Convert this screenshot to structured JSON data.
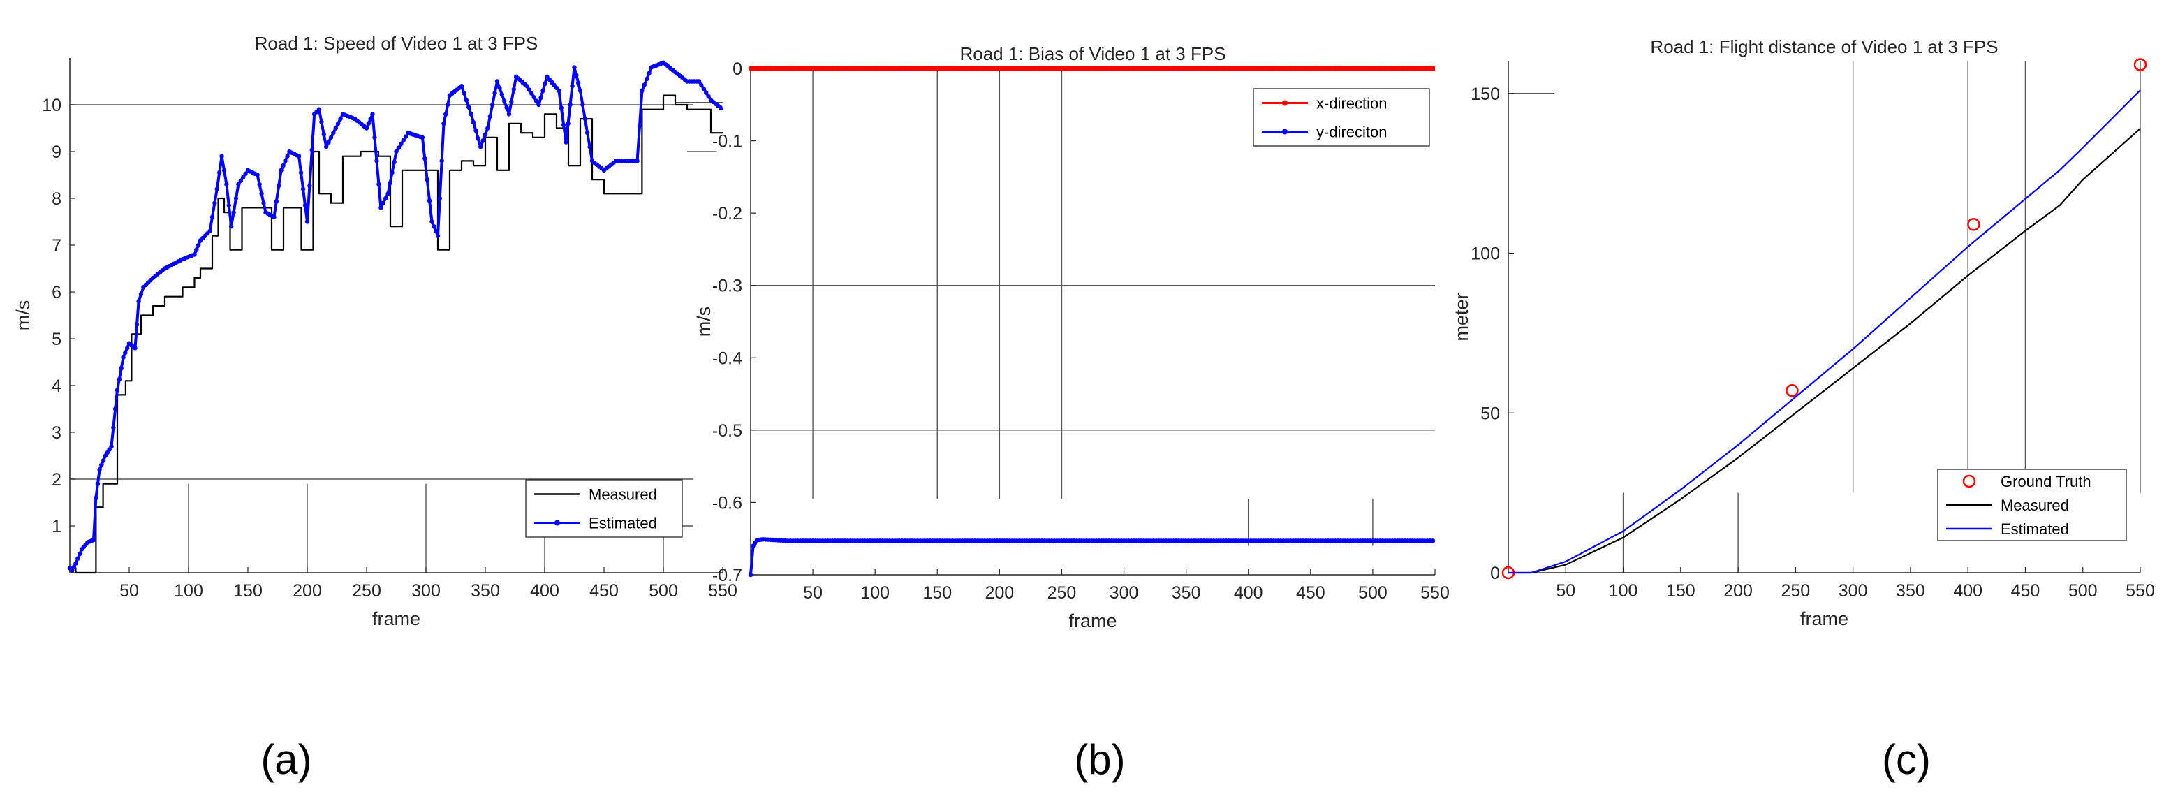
{
  "chart_data": [
    {
      "type": "line",
      "title": "Road 1: Speed of Video 1 at 3 FPS",
      "xlabel": "frame",
      "ylabel": "m/s",
      "xlim": [
        0,
        550
      ],
      "ylim": [
        0,
        11
      ],
      "xticks": [
        "50",
        "100",
        "150",
        "200",
        "250",
        "300",
        "350",
        "400",
        "450",
        "500",
        "550"
      ],
      "yticks": [
        "1",
        "2",
        "3",
        "4",
        "5",
        "6",
        "7",
        "8",
        "9",
        "10"
      ],
      "legend": "bottom-right",
      "caption": "(a)",
      "series": [
        {
          "name": "Measured",
          "color": "#000000",
          "step": true,
          "points": [
            [
              0,
              0.1
            ],
            [
              5,
              0
            ],
            [
              12,
              0
            ],
            [
              20,
              0
            ],
            [
              22,
              1.4
            ],
            [
              28,
              1.9
            ],
            [
              40,
              3.8
            ],
            [
              47,
              4.1
            ],
            [
              52,
              5.1
            ],
            [
              60,
              5.5
            ],
            [
              70,
              5.7
            ],
            [
              80,
              5.9
            ],
            [
              95,
              6.1
            ],
            [
              105,
              6.3
            ],
            [
              110,
              6.5
            ],
            [
              120,
              7.2
            ],
            [
              125,
              8.0
            ],
            [
              130,
              7.7
            ],
            [
              135,
              6.9
            ],
            [
              145,
              7.8
            ],
            [
              160,
              7.8
            ],
            [
              170,
              6.9
            ],
            [
              180,
              7.8
            ],
            [
              195,
              6.9
            ],
            [
              205,
              9.0
            ],
            [
              210,
              8.1
            ],
            [
              220,
              7.9
            ],
            [
              230,
              8.9
            ],
            [
              245,
              9.0
            ],
            [
              260,
              8.9
            ],
            [
              270,
              7.4
            ],
            [
              280,
              8.6
            ],
            [
              300,
              8.6
            ],
            [
              310,
              6.9
            ],
            [
              320,
              8.6
            ],
            [
              330,
              8.8
            ],
            [
              340,
              8.7
            ],
            [
              350,
              9.3
            ],
            [
              360,
              8.6
            ],
            [
              370,
              9.6
            ],
            [
              380,
              9.4
            ],
            [
              390,
              9.3
            ],
            [
              400,
              9.8
            ],
            [
              410,
              9.5
            ],
            [
              420,
              8.7
            ],
            [
              430,
              9.7
            ],
            [
              440,
              8.4
            ],
            [
              450,
              8.1
            ],
            [
              460,
              8.1
            ],
            [
              480,
              8.1
            ],
            [
              482,
              9.9
            ],
            [
              490,
              9.9
            ],
            [
              500,
              10.2
            ],
            [
              510,
              10.0
            ],
            [
              520,
              9.9
            ],
            [
              540,
              9.4
            ],
            [
              550,
              9.4
            ]
          ]
        },
        {
          "name": "Estimated",
          "color": "#0000ff",
          "marker": "dot",
          "points": [
            [
              0,
              0.1
            ],
            [
              2,
              0.05
            ],
            [
              5,
              0.2
            ],
            [
              10,
              0.5
            ],
            [
              15,
              0.65
            ],
            [
              20,
              0.7
            ],
            [
              22,
              1.6
            ],
            [
              25,
              2.2
            ],
            [
              30,
              2.5
            ],
            [
              35,
              2.7
            ],
            [
              40,
              3.9
            ],
            [
              45,
              4.6
            ],
            [
              50,
              4.9
            ],
            [
              55,
              4.8
            ],
            [
              58,
              5.8
            ],
            [
              62,
              6.1
            ],
            [
              70,
              6.3
            ],
            [
              80,
              6.5
            ],
            [
              95,
              6.7
            ],
            [
              105,
              6.8
            ],
            [
              110,
              7.1
            ],
            [
              118,
              7.3
            ],
            [
              124,
              8.2
            ],
            [
              128,
              8.9
            ],
            [
              132,
              8.3
            ],
            [
              136,
              7.4
            ],
            [
              142,
              8.3
            ],
            [
              150,
              8.6
            ],
            [
              158,
              8.5
            ],
            [
              165,
              7.7
            ],
            [
              172,
              7.6
            ],
            [
              178,
              8.6
            ],
            [
              185,
              9.0
            ],
            [
              193,
              8.9
            ],
            [
              200,
              7.5
            ],
            [
              206,
              9.8
            ],
            [
              210,
              9.9
            ],
            [
              216,
              9.1
            ],
            [
              222,
              9.4
            ],
            [
              230,
              9.8
            ],
            [
              240,
              9.7
            ],
            [
              250,
              9.5
            ],
            [
              255,
              9.8
            ],
            [
              262,
              7.8
            ],
            [
              268,
              8.1
            ],
            [
              275,
              9.0
            ],
            [
              285,
              9.4
            ],
            [
              297,
              9.3
            ],
            [
              305,
              7.5
            ],
            [
              310,
              7.2
            ],
            [
              315,
              9.6
            ],
            [
              320,
              10.2
            ],
            [
              330,
              10.4
            ],
            [
              338,
              9.8
            ],
            [
              346,
              9.1
            ],
            [
              352,
              9.5
            ],
            [
              360,
              10.5
            ],
            [
              370,
              9.8
            ],
            [
              376,
              10.6
            ],
            [
              385,
              10.4
            ],
            [
              395,
              10.0
            ],
            [
              402,
              10.6
            ],
            [
              412,
              10.3
            ],
            [
              418,
              9.2
            ],
            [
              425,
              10.8
            ],
            [
              430,
              10.3
            ],
            [
              440,
              8.8
            ],
            [
              450,
              8.6
            ],
            [
              460,
              8.8
            ],
            [
              478,
              8.8
            ],
            [
              482,
              10.3
            ],
            [
              490,
              10.8
            ],
            [
              500,
              10.9
            ],
            [
              510,
              10.7
            ],
            [
              520,
              10.5
            ],
            [
              530,
              10.5
            ],
            [
              540,
              10.1
            ],
            [
              550,
              9.9
            ]
          ]
        }
      ]
    },
    {
      "type": "line",
      "title": "Road 1: Bias of Video 1 at 3 FPS",
      "xlabel": "frame",
      "ylabel": "m/s",
      "xlim": [
        0,
        550
      ],
      "ylim": [
        -0.7,
        0
      ],
      "xticks": [
        "50",
        "100",
        "150",
        "200",
        "250",
        "300",
        "350",
        "400",
        "450",
        "500",
        "550"
      ],
      "yticks": [
        "0",
        "-0.1",
        "-0.2",
        "-0.3",
        "-0.4",
        "-0.5",
        "-0.6",
        "-0.7"
      ],
      "legend": "top-right",
      "caption": "(b)",
      "series": [
        {
          "name": "x-direction",
          "color": "#ff0000",
          "marker": "dot",
          "points": [
            [
              0,
              0
            ],
            [
              550,
              0
            ]
          ]
        },
        {
          "name": "y-direciton",
          "color": "#0000ff",
          "marker": "dot",
          "points": [
            [
              0,
              -0.7
            ],
            [
              2,
              -0.66
            ],
            [
              5,
              -0.652
            ],
            [
              10,
              -0.651
            ],
            [
              20,
              -0.652
            ],
            [
              30,
              -0.653
            ],
            [
              550,
              -0.653
            ]
          ]
        }
      ]
    },
    {
      "type": "line",
      "title": "Road 1: Flight distance of Video 1 at 3 FPS",
      "xlabel": "frame",
      "ylabel": "meter",
      "xlim": [
        0,
        550
      ],
      "ylim": [
        0,
        160
      ],
      "xticks": [
        "50",
        "100",
        "150",
        "200",
        "250",
        "300",
        "350",
        "400",
        "450",
        "500",
        "550"
      ],
      "yticks": [
        "0",
        "50",
        "100",
        "150"
      ],
      "legend": "bottom-right",
      "caption": "(c)",
      "series": [
        {
          "name": "Ground Truth",
          "color": "#ff0000",
          "marker": "circle",
          "points": [
            [
              0,
              0
            ],
            [
              247,
              57
            ],
            [
              405,
              109
            ],
            [
              550,
              159
            ]
          ]
        },
        {
          "name": "Measured",
          "color": "#000000",
          "points": [
            [
              0,
              0
            ],
            [
              20,
              0
            ],
            [
              50,
              2.5
            ],
            [
              100,
              11
            ],
            [
              150,
              23
            ],
            [
              200,
              36
            ],
            [
              250,
              50
            ],
            [
              300,
              64
            ],
            [
              350,
              78
            ],
            [
              400,
              93
            ],
            [
              450,
              107
            ],
            [
              480,
              115
            ],
            [
              500,
              123
            ],
            [
              550,
              139
            ]
          ]
        },
        {
          "name": "Estimated",
          "color": "#0000ff",
          "points": [
            [
              0,
              0
            ],
            [
              20,
              0
            ],
            [
              50,
              3.5
            ],
            [
              100,
              13
            ],
            [
              150,
              26
            ],
            [
              200,
              40
            ],
            [
              250,
              55
            ],
            [
              300,
              70
            ],
            [
              350,
              86
            ],
            [
              400,
              102
            ],
            [
              450,
              117
            ],
            [
              480,
              126
            ],
            [
              500,
              133
            ],
            [
              550,
              151
            ]
          ]
        }
      ]
    }
  ]
}
